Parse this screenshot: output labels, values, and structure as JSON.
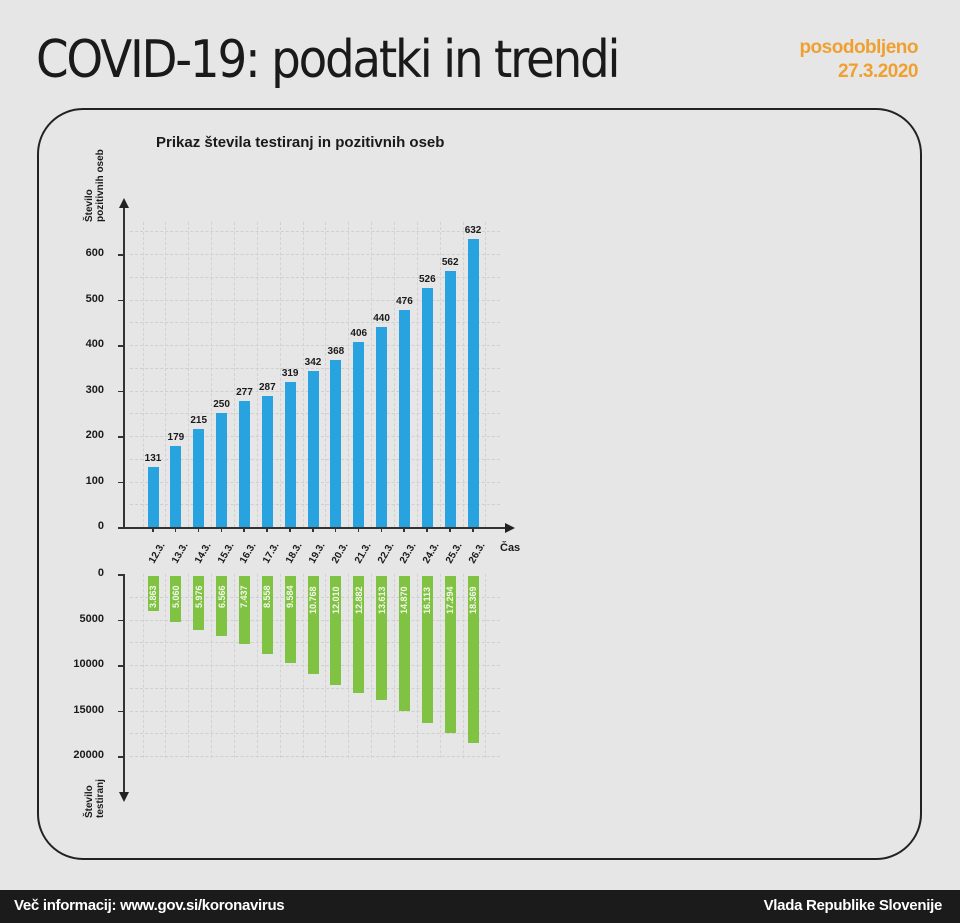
{
  "header": {
    "title": "COVID-19: podatki in trendi",
    "updated_label": "posodobljeno",
    "updated_date": "27.3.2020"
  },
  "colors": {
    "positive_bar": "#29a3df",
    "tests_bar": "#80c342",
    "accent_orange": "#f0a030",
    "footer_bg": "#1b1b1b"
  },
  "chart_data": {
    "type": "bar",
    "title": "Prikaz števila testiranj in pozitivnih oseb",
    "xlabel": "Čas",
    "categories": [
      "12.3.",
      "13.3.",
      "14.3.",
      "15.3.",
      "16.3.",
      "17.3.",
      "18.3.",
      "19.3.",
      "20.3.",
      "21.3.",
      "22.3.",
      "23.3.",
      "24.3.",
      "25.3.",
      "26.3."
    ],
    "series": [
      {
        "name": "Število pozitivnih oseb",
        "ylabel_line1": "Število",
        "ylabel_line2": "pozitivnih oseb",
        "direction": "up",
        "values": [
          131,
          179,
          215,
          250,
          277,
          287,
          319,
          342,
          368,
          406,
          440,
          476,
          526,
          562,
          632
        ],
        "labels": [
          "131",
          "179",
          "215",
          "250",
          "277",
          "287",
          "319",
          "342",
          "368",
          "406",
          "440",
          "476",
          "526",
          "562",
          "632"
        ],
        "yticks": [
          "0",
          "100",
          "200",
          "300",
          "400",
          "500",
          "600"
        ],
        "ylim": [
          0,
          650
        ]
      },
      {
        "name": "Število testiranj",
        "ylabel_line1": "Število",
        "ylabel_line2": "testiranj",
        "direction": "down",
        "values": [
          3863,
          5060,
          5976,
          6566,
          7437,
          8558,
          9584,
          10768,
          12010,
          12882,
          13613,
          14870,
          16113,
          17294,
          18369
        ],
        "labels": [
          "3.863",
          "5.060",
          "5.976",
          "6.566",
          "7.437",
          "8.558",
          "9.584",
          "10.768",
          "12.010",
          "12.882",
          "13.613",
          "14.870",
          "16.113",
          "17.294",
          "18.369"
        ],
        "yticks": [
          "0",
          "5000",
          "10000",
          "15000",
          "20000"
        ],
        "ylim": [
          0,
          20000
        ]
      }
    ],
    "grid": true,
    "legend": "none"
  },
  "footer": {
    "left": "Več informacij: www.gov.si/koronavirus",
    "right": "Vlada Republike Slovenije"
  }
}
